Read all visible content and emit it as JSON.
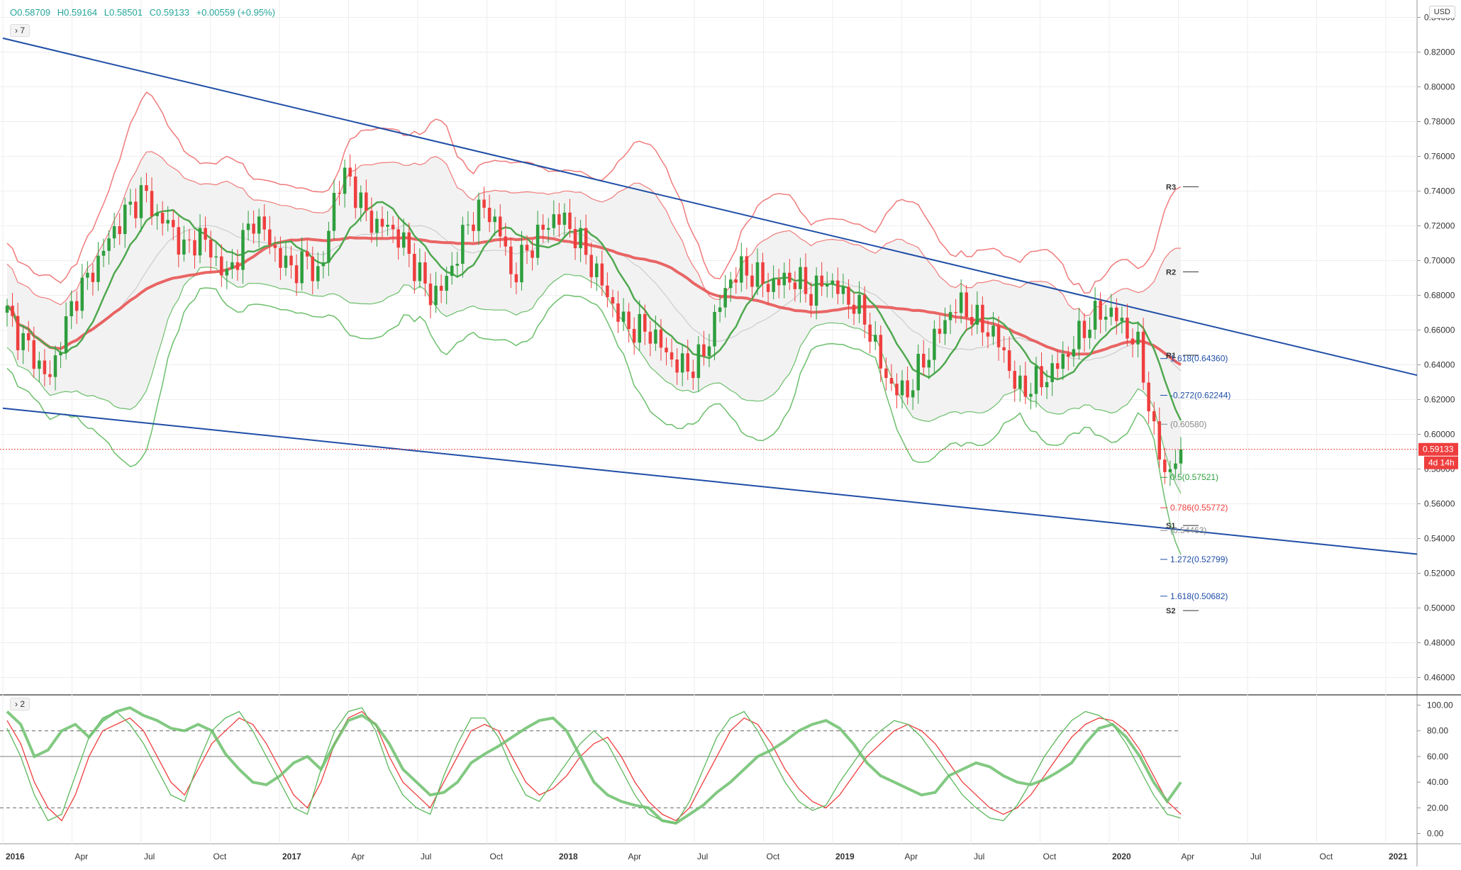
{
  "header": {
    "open": "O0.58709",
    "high": "H0.59164",
    "low": "L0.58501",
    "close": "C0.59133",
    "change": "+0.00559 (+0.95%)",
    "main_toggle": "7",
    "osc_toggle": "2",
    "currency": "USD"
  },
  "price_tag": {
    "value": "0.59133",
    "countdown": "4d 14h"
  },
  "colors": {
    "up": "#2e9e3e",
    "down": "#ef3e3e",
    "trend": "#1f4ea6",
    "upper_band": "#f07b7b",
    "lower_band": "#6cbf6c"
  },
  "chart_data": {
    "type": "candlestick",
    "interval": "weekly",
    "x_ticks": [
      "2016",
      "Apr",
      "Jul",
      "Oct",
      "2017",
      "Apr",
      "Jul",
      "Oct",
      "2018",
      "Apr",
      "Jul",
      "Oct",
      "2019",
      "Apr",
      "Jul",
      "Oct",
      "2020",
      "Apr",
      "Jul",
      "Oct",
      "2021"
    ],
    "y_ticks": [
      "0.84000",
      "0.82000",
      "0.80000",
      "0.78000",
      "0.76000",
      "0.74000",
      "0.72000",
      "0.70000",
      "0.68000",
      "0.66000",
      "0.64000",
      "0.62000",
      "0.60000",
      "0.58000",
      "0.56000",
      "0.54000",
      "0.52000",
      "0.50000",
      "0.48000",
      "0.46000"
    ],
    "ylim": [
      0.45,
      0.85
    ],
    "last_price": 0.59133,
    "price_path": [
      0.67,
      0.655,
      0.645,
      0.63,
      0.655,
      0.68,
      0.69,
      0.705,
      0.72,
      0.73,
      0.74,
      0.725,
      0.72,
      0.705,
      0.715,
      0.705,
      0.69,
      0.705,
      0.725,
      0.715,
      0.7,
      0.695,
      0.7,
      0.69,
      0.74,
      0.75,
      0.73,
      0.72,
      0.72,
      0.71,
      0.695,
      0.68,
      0.685,
      0.705,
      0.725,
      0.73,
      0.72,
      0.69,
      0.705,
      0.715,
      0.725,
      0.722,
      0.71,
      0.695,
      0.68,
      0.665,
      0.66,
      0.66,
      0.65,
      0.64,
      0.638,
      0.645,
      0.67,
      0.69,
      0.695,
      0.69,
      0.685,
      0.69,
      0.688,
      0.68,
      0.69,
      0.682,
      0.675,
      0.665,
      0.64,
      0.625,
      0.625,
      0.64,
      0.655,
      0.67,
      0.675,
      0.665,
      0.66,
      0.648,
      0.625,
      0.628,
      0.632,
      0.64,
      0.65,
      0.662,
      0.67,
      0.67,
      0.66,
      0.648,
      0.6,
      0.575,
      0.59133
    ],
    "pivots": [
      {
        "label": "R3",
        "value": 0.7425
      },
      {
        "label": "R2",
        "value": 0.6935
      },
      {
        "label": "R1",
        "value": 0.6455
      },
      {
        "label": "S1",
        "value": 0.5475
      },
      {
        "label": "S2",
        "value": 0.4985
      }
    ],
    "fib_levels": [
      {
        "label": "1.618(0.64360)",
        "value": 0.6436,
        "color": "#1f4ea6"
      },
      {
        "label": "-0.272(0.62244)",
        "value": 0.62244,
        "color": "#1f4ea6"
      },
      {
        "label": "(0.60580)",
        "value": 0.6058,
        "color": "#888888"
      },
      {
        "label": "0.5(0.57521)",
        "value": 0.57521,
        "color": "#2e9e3e"
      },
      {
        "label": "0.786(0.55772)",
        "value": 0.55772,
        "color": "#ef3e3e"
      },
      {
        "label": "(0.54463)",
        "value": 0.54463,
        "color": "#888888"
      },
      {
        "label": "1.272(0.52799)",
        "value": 0.52799,
        "color": "#1f4ea6"
      },
      {
        "label": "1.618(0.50682)",
        "value": 0.50682,
        "color": "#1f4ea6"
      }
    ],
    "oscillator": {
      "y_ticks": [
        "100.00",
        "80.00",
        "60.00",
        "40.00",
        "20.00",
        "0.00"
      ],
      "ylim": [
        -8,
        108
      ],
      "levels": [
        80,
        60,
        20
      ],
      "series": [
        {
          "color": "#ef3e3e",
          "values": [
            88,
            70,
            40,
            20,
            10,
            30,
            60,
            80,
            85,
            90,
            80,
            60,
            40,
            30,
            50,
            70,
            80,
            90,
            85,
            70,
            50,
            30,
            20,
            40,
            70,
            90,
            95,
            85,
            60,
            40,
            30,
            20,
            40,
            60,
            80,
            85,
            80,
            60,
            40,
            30,
            35,
            45,
            60,
            70,
            75,
            60,
            40,
            25,
            15,
            10,
            20,
            40,
            60,
            80,
            90,
            85,
            70,
            50,
            35,
            25,
            20,
            30,
            45,
            60,
            70,
            80,
            85,
            80,
            70,
            55,
            40,
            30,
            20,
            15,
            20,
            30,
            45,
            60,
            75,
            85,
            90,
            88,
            80,
            65,
            45,
            25,
            15
          ]
        },
        {
          "color": "#5cb85c",
          "values": [
            82,
            60,
            30,
            10,
            15,
            45,
            75,
            90,
            95,
            85,
            70,
            50,
            30,
            25,
            55,
            80,
            90,
            95,
            80,
            60,
            40,
            20,
            15,
            50,
            80,
            95,
            98,
            80,
            50,
            30,
            20,
            15,
            45,
            70,
            90,
            90,
            75,
            50,
            30,
            25,
            40,
            55,
            70,
            80,
            70,
            50,
            30,
            15,
            10,
            8,
            25,
            50,
            75,
            90,
            95,
            80,
            60,
            40,
            25,
            18,
            22,
            40,
            55,
            70,
            80,
            88,
            85,
            75,
            60,
            45,
            30,
            20,
            12,
            10,
            22,
            40,
            60,
            75,
            88,
            95,
            92,
            85,
            70,
            50,
            30,
            15,
            12
          ]
        },
        {
          "color": "#6cbf6c",
          "width": 4,
          "values": [
            95,
            85,
            60,
            65,
            80,
            85,
            75,
            88,
            95,
            98,
            92,
            88,
            82,
            80,
            85,
            80,
            62,
            50,
            40,
            38,
            45,
            55,
            60,
            50,
            70,
            88,
            92,
            85,
            70,
            50,
            40,
            30,
            32,
            40,
            55,
            62,
            68,
            75,
            82,
            88,
            90,
            80,
            60,
            40,
            30,
            25,
            22,
            20,
            10,
            8,
            15,
            22,
            32,
            40,
            50,
            60,
            65,
            72,
            80,
            85,
            88,
            82,
            70,
            55,
            45,
            40,
            35,
            30,
            32,
            45,
            50,
            55,
            52,
            45,
            40,
            38,
            42,
            48,
            55,
            70,
            82,
            85,
            75,
            60,
            40,
            25,
            40
          ]
        }
      ]
    }
  }
}
